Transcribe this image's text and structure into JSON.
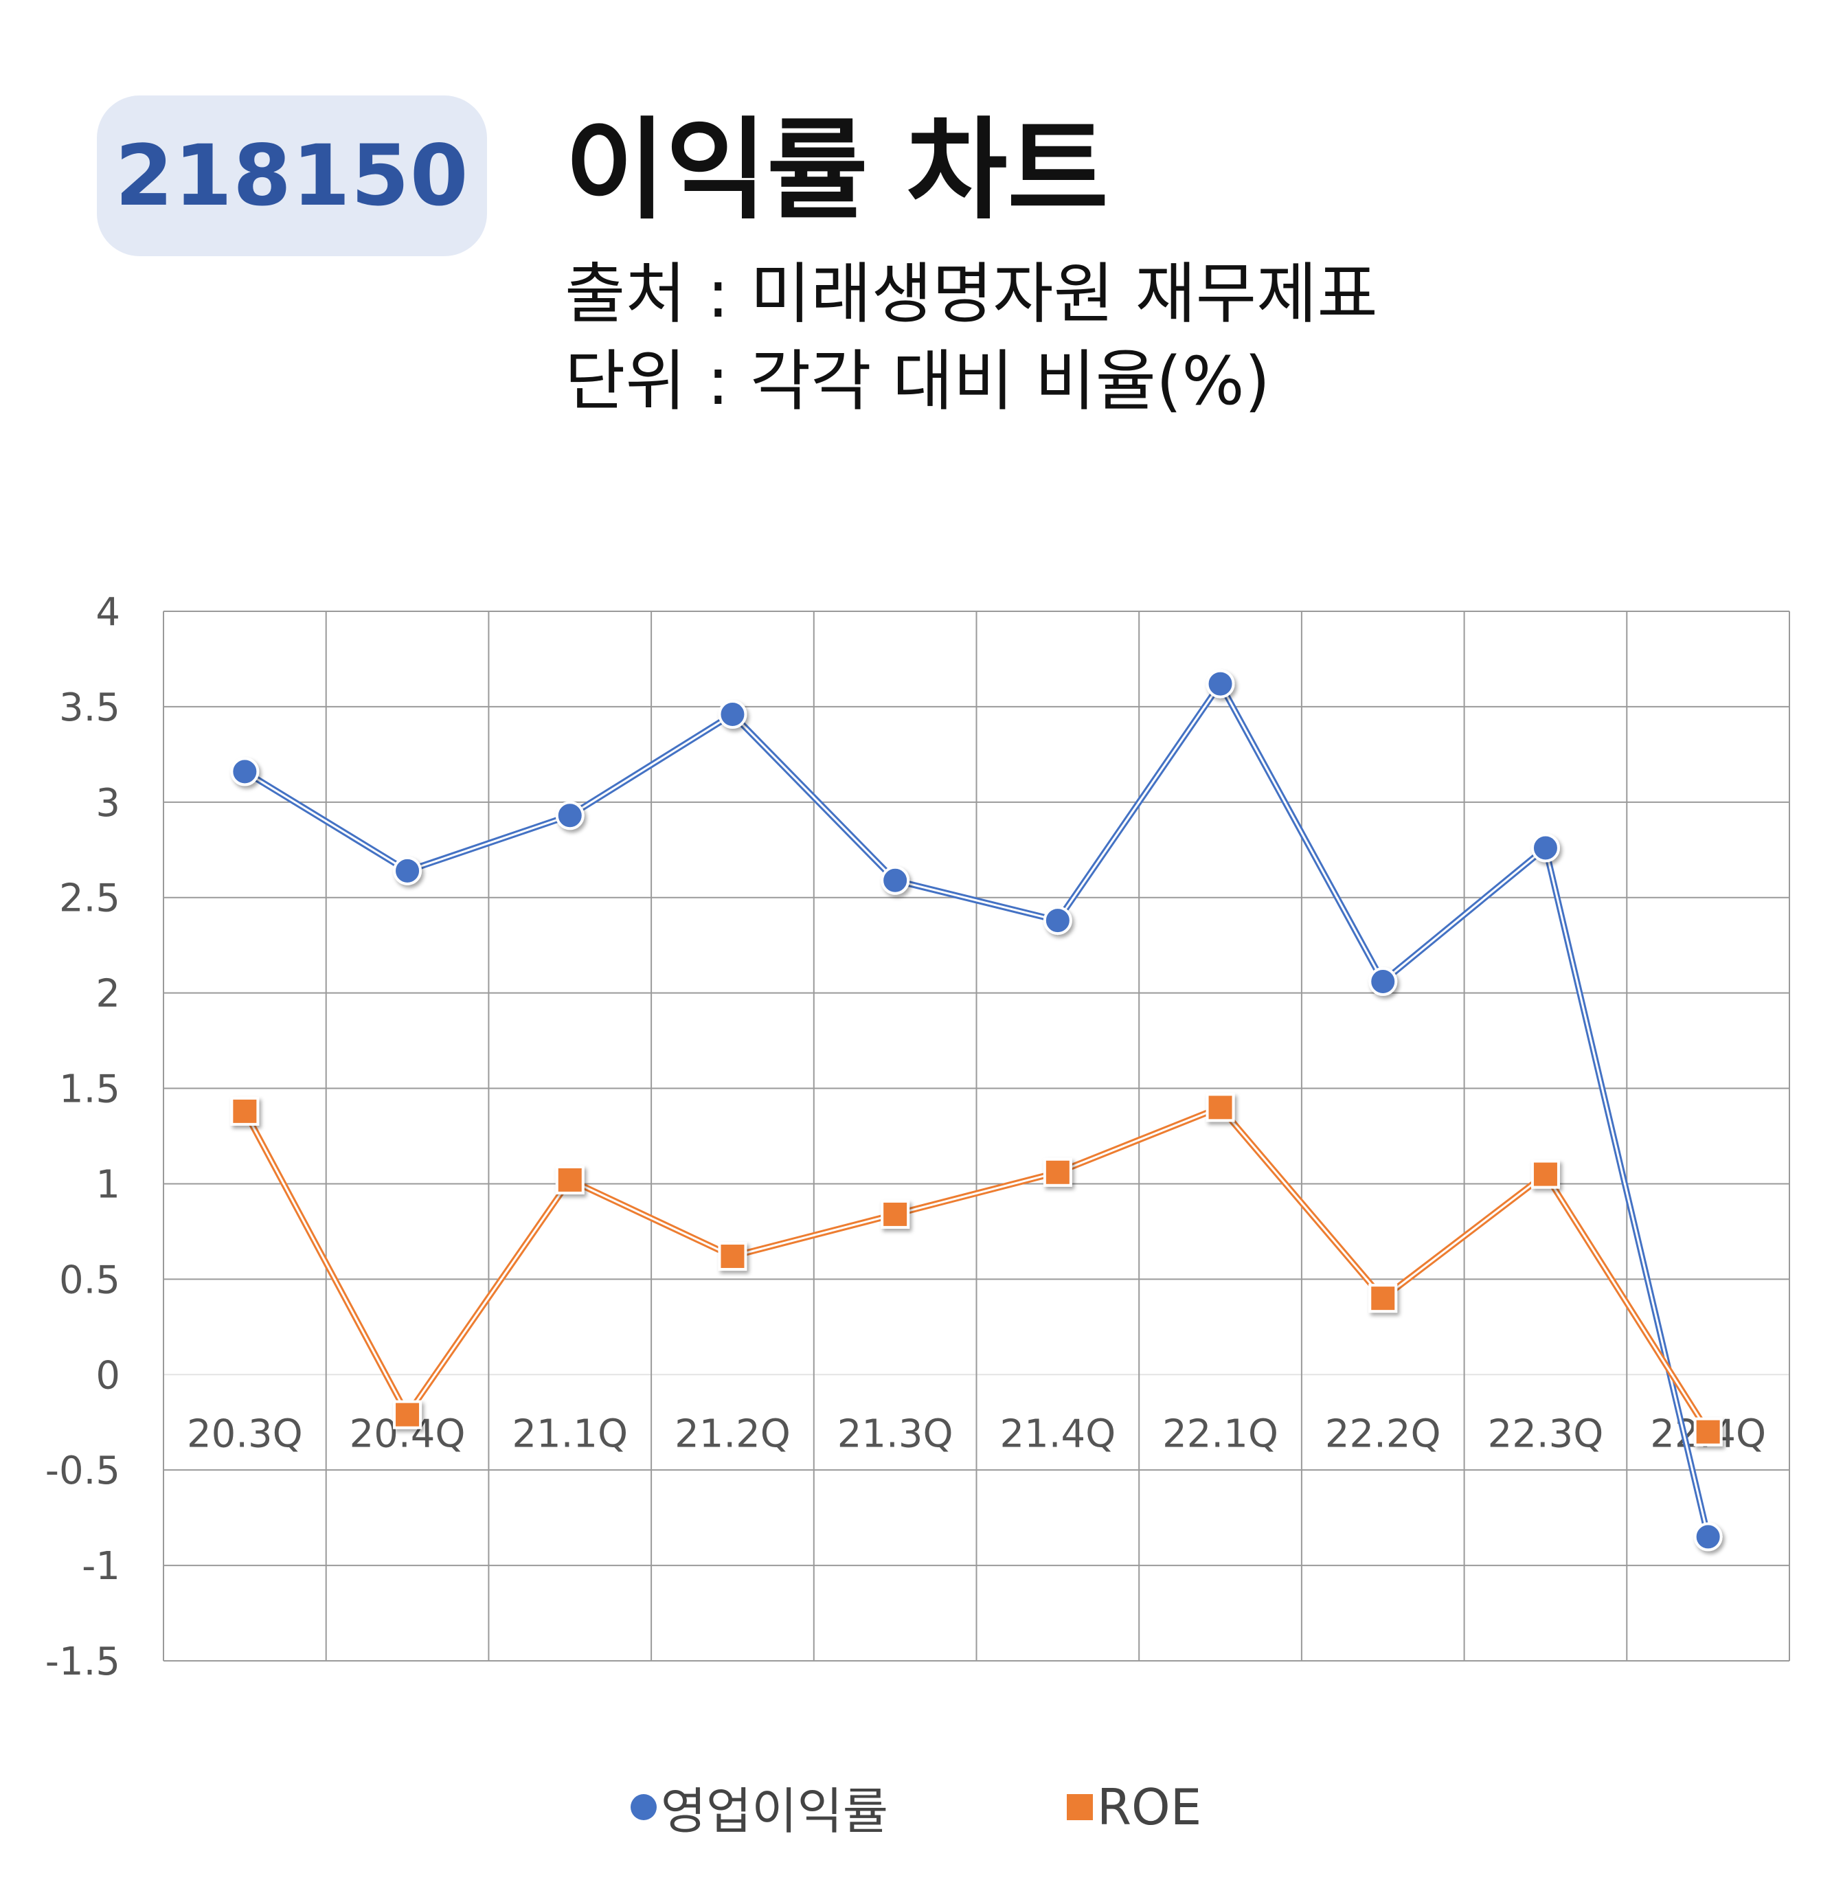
{
  "header": {
    "code": "218150",
    "title": "이익률 차트",
    "source": "출처 : 미래생명자원 재무제표",
    "unit": "단위 : 각각 대비 비율(%)"
  },
  "colors": {
    "badge_bg": "#e3e9f5",
    "badge_text": "#2f55a0",
    "series_1": "#4472c4",
    "series_2": "#ed7d31",
    "grid": "#9a9a9a"
  },
  "chart_data": {
    "type": "line",
    "title": "이익률 차트",
    "categories": [
      "20.3Q",
      "20.4Q",
      "21.1Q",
      "21.2Q",
      "21.3Q",
      "21.4Q",
      "22.1Q",
      "22.2Q",
      "22.3Q",
      "22.4Q"
    ],
    "series": [
      {
        "name": "영업이익률",
        "marker": "circle",
        "color": "#4472c4",
        "values": [
          3.16,
          2.64,
          2.93,
          3.46,
          2.59,
          2.38,
          3.62,
          2.06,
          2.76,
          -0.85
        ]
      },
      {
        "name": "ROE",
        "marker": "square",
        "color": "#ed7d31",
        "values": [
          1.38,
          -0.21,
          1.02,
          0.62,
          0.84,
          1.06,
          1.4,
          0.4,
          1.05,
          -0.3
        ]
      }
    ],
    "ylim": [
      -1.5,
      4
    ],
    "yticks": [
      "4",
      "3.5",
      "3",
      "2.5",
      "2",
      "1.5",
      "1",
      "0.5",
      "0",
      "-0.5",
      "-1",
      "-1.5"
    ],
    "ytick_values": [
      4,
      3.5,
      3,
      2.5,
      2,
      1.5,
      1,
      0.5,
      0,
      -0.5,
      -1,
      -1.5
    ],
    "grid": true,
    "legend_position": "bottom"
  }
}
